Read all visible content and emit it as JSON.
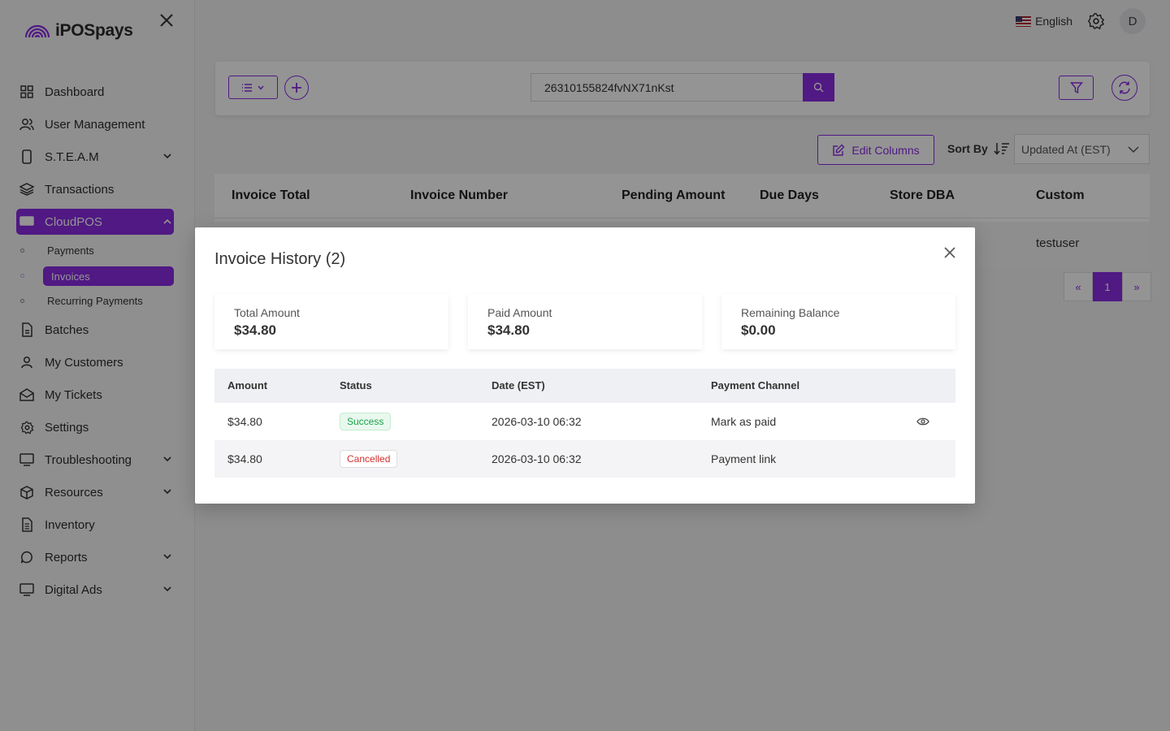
{
  "app": {
    "name": "iPOSpays"
  },
  "topbar": {
    "language": "English",
    "avatar_initial": "D"
  },
  "sidebar": {
    "items": [
      {
        "label": "Dashboard",
        "icon": "grid-icon"
      },
      {
        "label": "User Management",
        "icon": "users-icon"
      },
      {
        "label": "S.T.E.A.M",
        "icon": "device-icon",
        "expandable": true
      },
      {
        "label": "Transactions",
        "icon": "layers-icon"
      },
      {
        "label": "CloudPOS",
        "icon": "monitor-icon",
        "expandable": true,
        "active": true
      },
      {
        "label": "Batches",
        "icon": "file-icon"
      },
      {
        "label": "My Customers",
        "icon": "user-icon"
      },
      {
        "label": "My Tickets",
        "icon": "mail-icon"
      },
      {
        "label": "Settings",
        "icon": "gear-icon"
      },
      {
        "label": "Troubleshooting",
        "icon": "monitor-icon",
        "expandable": true
      },
      {
        "label": "Resources",
        "icon": "box-icon",
        "expandable": true
      },
      {
        "label": "Inventory",
        "icon": "doc-icon"
      },
      {
        "label": "Reports",
        "icon": "chat-icon",
        "expandable": true
      },
      {
        "label": "Digital Ads",
        "icon": "monitor-icon",
        "expandable": true
      }
    ],
    "cloudpos_sub": [
      {
        "label": "Payments"
      },
      {
        "label": "Invoices",
        "active": true
      },
      {
        "label": "Recurring Payments"
      }
    ]
  },
  "toolbar": {
    "search_value": "26310155824fvNX71nKst"
  },
  "controls": {
    "edit_columns": "Edit Columns",
    "sort_by": "Sort By",
    "sort_value": "Updated At (EST)"
  },
  "table": {
    "headers": [
      "Invoice Total",
      "Invoice Number",
      "Pending Amount",
      "Due Days",
      "Store DBA",
      "Custom"
    ],
    "row_visible_cell": "testuser"
  },
  "pagination": {
    "prev": "«",
    "current": "1",
    "next": "»"
  },
  "modal": {
    "title": "Invoice History (2)",
    "summary": [
      {
        "label": "Total Amount",
        "value": "$34.80"
      },
      {
        "label": "Paid Amount",
        "value": "$34.80"
      },
      {
        "label": "Remaining Balance",
        "value": "$0.00"
      }
    ],
    "columns": [
      "Amount",
      "Status",
      "Date (EST)",
      "Payment Channel"
    ],
    "rows": [
      {
        "amount": "$34.80",
        "status": "Success",
        "date": "2026-03-10 06:32",
        "channel": "Mark as paid"
      },
      {
        "amount": "$34.80",
        "status": "Cancelled",
        "date": "2026-03-10 06:32",
        "channel": "Payment link"
      }
    ]
  },
  "colors": {
    "accent": "#8a2be2",
    "success": "#1aa34a",
    "danger": "#d0312d"
  }
}
